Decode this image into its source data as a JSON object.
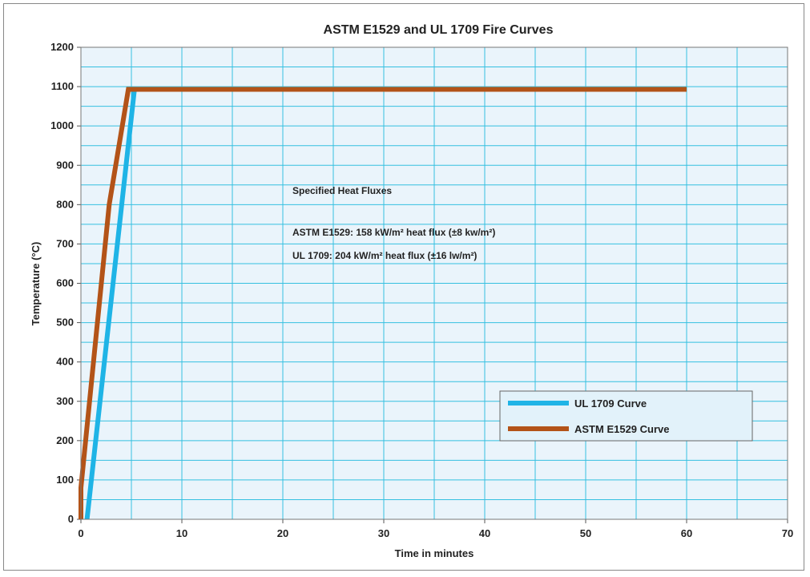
{
  "chart_data": {
    "type": "line",
    "title": "ASTM E1529 and UL 1709 Fire Curves",
    "xlabel": "Time in minutes",
    "ylabel": "Temperature (°C)",
    "xlim": [
      0,
      70
    ],
    "ylim": [
      0,
      1200
    ],
    "xticks": [
      0,
      10,
      20,
      30,
      40,
      50,
      60,
      70
    ],
    "yticks": [
      0,
      100,
      200,
      300,
      400,
      500,
      600,
      700,
      800,
      900,
      1000,
      1100,
      1200
    ],
    "grid": true,
    "plot_background": "#eaf4fb",
    "grid_color": "#35c0e0",
    "series": [
      {
        "name": "UL 1709 Curve",
        "color": "#1fb4e6",
        "points": [
          [
            0.6,
            0
          ],
          [
            5.3,
            1093
          ],
          [
            60,
            1093
          ]
        ]
      },
      {
        "name": "ASTM E1529 Curve",
        "color": "#b35318",
        "points": [
          [
            0,
            0
          ],
          [
            0,
            80
          ],
          [
            2.8,
            800
          ],
          [
            4.7,
            1093
          ],
          [
            60,
            1093
          ]
        ]
      }
    ],
    "legend_position": "lower-right",
    "annotations": {
      "heading": "Specified Heat Fluxes",
      "line1": "ASTM E1529: 158 kW/m² heat flux (±8 kw/m²)",
      "line2": "UL 1709: 204 kW/m² heat flux (±16 lw/m²)"
    }
  }
}
